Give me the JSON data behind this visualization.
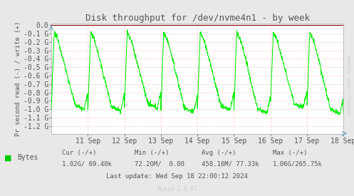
{
  "title": "Disk throughput for /dev/nvme4n1 - by week",
  "ylabel": "Pr second read (-) / write (+)",
  "background_color": "#e8e8e8",
  "plot_bg_color": "#ffffff",
  "line_color": "#00ee00",
  "grid_color": "#ffaaaa",
  "border_color": "#aaaaaa",
  "top_border_color": "#cc0000",
  "ylim": [
    -1.3,
    0.02
  ],
  "yticks": [
    0.0,
    -0.1,
    -0.2,
    -0.3,
    -0.4,
    -0.5,
    -0.6,
    -0.7,
    -0.8,
    -0.9,
    -1.0,
    -1.1,
    -1.2
  ],
  "ytick_labels": [
    "0.0",
    "-0.1 G",
    "-0.2 G",
    "-0.3 G",
    "-0.4 G",
    "-0.5 G",
    "-0.6 G",
    "-0.7 G",
    "-0.8 G",
    "-0.9 G",
    "-1.0 G",
    "-1.1 G",
    "-1.2 G"
  ],
  "xtick_labels": [
    "11 Sep",
    "12 Sep",
    "13 Sep",
    "14 Sep",
    "15 Sep",
    "16 Sep",
    "17 Sep",
    "18 Sep"
  ],
  "legend_label": "Bytes",
  "legend_color": "#00cc00",
  "cur_text": "Cur (-/+)",
  "cur_val": "1.02G/ 69.40k",
  "min_text": "Min (-/+)",
  "min_val": "72.20M/  0.00",
  "avg_text": "Avg (-/+)",
  "avg_val": "458.16M/ 77.33k",
  "max_text": "Max (-/+)",
  "max_val": "1.06G/265.75k",
  "last_update": "Last update: Wed Sep 18 22:00:12 2024",
  "munin_text": "Munin 2.0.67",
  "watermark": "RRDTOOL / TOBI OETIKER",
  "text_color": "#555555",
  "watermark_color": "#cccccc",
  "title_fontsize": 9,
  "tick_fontsize": 7,
  "legend_fontsize": 7,
  "stats_fontsize": 6.5
}
